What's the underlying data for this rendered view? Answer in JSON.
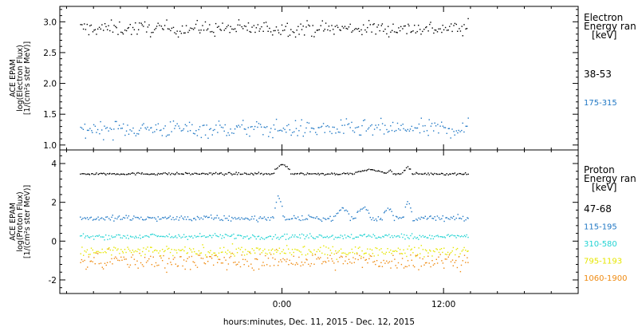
{
  "figure": {
    "xlabel": "hours:minutes, Dec. 11, 2015 - Dec. 12, 2015"
  },
  "chart_data": [
    {
      "type": "scatter",
      "panel": "electron",
      "ylabel_lines": [
        "ACE EPAM",
        "log(Electron Flux)",
        "[1/(cm²s ster MeV)]"
      ],
      "xlim": [
        -16.5,
        22
      ],
      "ylim": [
        0.92,
        3.25
      ],
      "yticks": [
        1.0,
        1.5,
        2.0,
        2.5,
        3.0
      ],
      "ytick_labels": [
        "1.0",
        "1.5",
        "2.0",
        "2.5",
        "3.0"
      ],
      "xticks": [
        0,
        12
      ],
      "xtick_labels": [
        "0:00",
        "12:00"
      ],
      "legend_title_lines": [
        "Electron",
        "Energy ran",
        "[keV]"
      ],
      "series": [
        {
          "name": "38-53",
          "color": "#000000",
          "x_range": [
            -15,
            13.8
          ],
          "base": 2.9,
          "noise": 0.06,
          "spikes": []
        },
        {
          "name": "175-315",
          "color": "#1f77c4",
          "x_range": [
            -15,
            13.8
          ],
          "base": 1.27,
          "noise": 0.07,
          "spikes": []
        }
      ]
    },
    {
      "type": "scatter",
      "panel": "proton",
      "ylabel_lines": [
        "ACE EPAM",
        "log(Proton Flux)",
        "[1/(cm²s ster MeV)]"
      ],
      "xlim": [
        -16.5,
        22
      ],
      "ylim": [
        -2.7,
        4.7
      ],
      "yticks": [
        -2,
        0,
        2,
        4
      ],
      "ytick_labels": [
        "-2",
        "0",
        "2",
        "4"
      ],
      "xticks": [
        0,
        12
      ],
      "xtick_labels": [
        "0:00",
        "12:00"
      ],
      "legend_title_lines": [
        "Proton",
        "Energy ran",
        "[keV]"
      ],
      "series": [
        {
          "name": "47-68",
          "color": "#000000",
          "x_range": [
            -15,
            13.8
          ],
          "base": 3.5,
          "noise": 0.03,
          "spikes": [
            [
              -0.6,
              0.6,
              4.1
            ],
            [
              5.5,
              7.5,
              3.75
            ],
            [
              7.8,
              8.2,
              3.7
            ],
            [
              9.0,
              9.6,
              3.9
            ]
          ]
        },
        {
          "name": "115-195",
          "color": "#1f77c4",
          "x_range": [
            -15,
            13.8
          ],
          "base": 1.2,
          "noise": 0.07,
          "spikes": [
            [
              -0.6,
              0.0,
              2.6
            ],
            [
              4.0,
              5.0,
              1.8
            ],
            [
              5.5,
              6.5,
              1.9
            ],
            [
              7.5,
              8.2,
              1.9
            ],
            [
              9.0,
              9.6,
              2.2
            ]
          ]
        },
        {
          "name": "310-580",
          "color": "#22d3d3",
          "x_range": [
            -15,
            13.8
          ],
          "base": 0.27,
          "noise": 0.07,
          "spikes": []
        },
        {
          "name": "795-1193",
          "color": "#e6e600",
          "x_range": [
            -15,
            13.8
          ],
          "base": -0.5,
          "noise": 0.13,
          "spikes": []
        },
        {
          "name": "1060-1900",
          "color": "#ef8a10",
          "x_range": [
            -15,
            13.8
          ],
          "base": -1.0,
          "noise": 0.22,
          "spikes": []
        }
      ]
    }
  ]
}
